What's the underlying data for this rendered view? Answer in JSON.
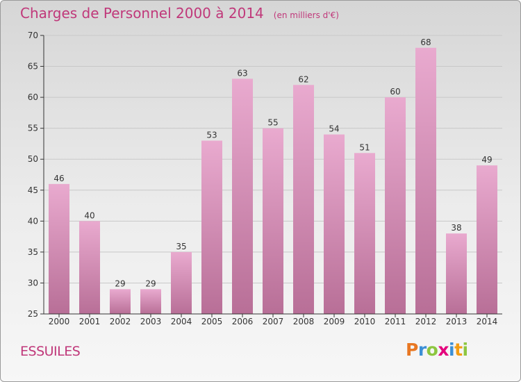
{
  "title": "Charges de Personnel 2000 à 2014",
  "subtitle": "(en milliers d'€)",
  "commune": "ESSUILES",
  "logo": {
    "p": "P",
    "r": "r",
    "o": "o",
    "x": "x",
    "i": "i",
    "t": "t",
    "i2": "i"
  },
  "colors": {
    "bar_top": "#e9aacf",
    "bar_bottom": "#b86f97",
    "title": "#c0387a"
  },
  "chart_data": {
    "type": "bar",
    "title": "Charges de Personnel 2000 à 2014",
    "subtitle": "(en milliers d'€)",
    "categories": [
      "2000",
      "2001",
      "2002",
      "2003",
      "2004",
      "2005",
      "2006",
      "2007",
      "2008",
      "2009",
      "2010",
      "2011",
      "2012",
      "2013",
      "2014"
    ],
    "values": [
      46,
      40,
      29,
      29,
      35,
      53,
      63,
      55,
      62,
      54,
      51,
      60,
      68,
      38,
      49
    ],
    "ylim": [
      25,
      70
    ],
    "yticks": [
      25,
      30,
      35,
      40,
      45,
      50,
      55,
      60,
      65,
      70
    ],
    "grid": true,
    "data_labels": true
  }
}
